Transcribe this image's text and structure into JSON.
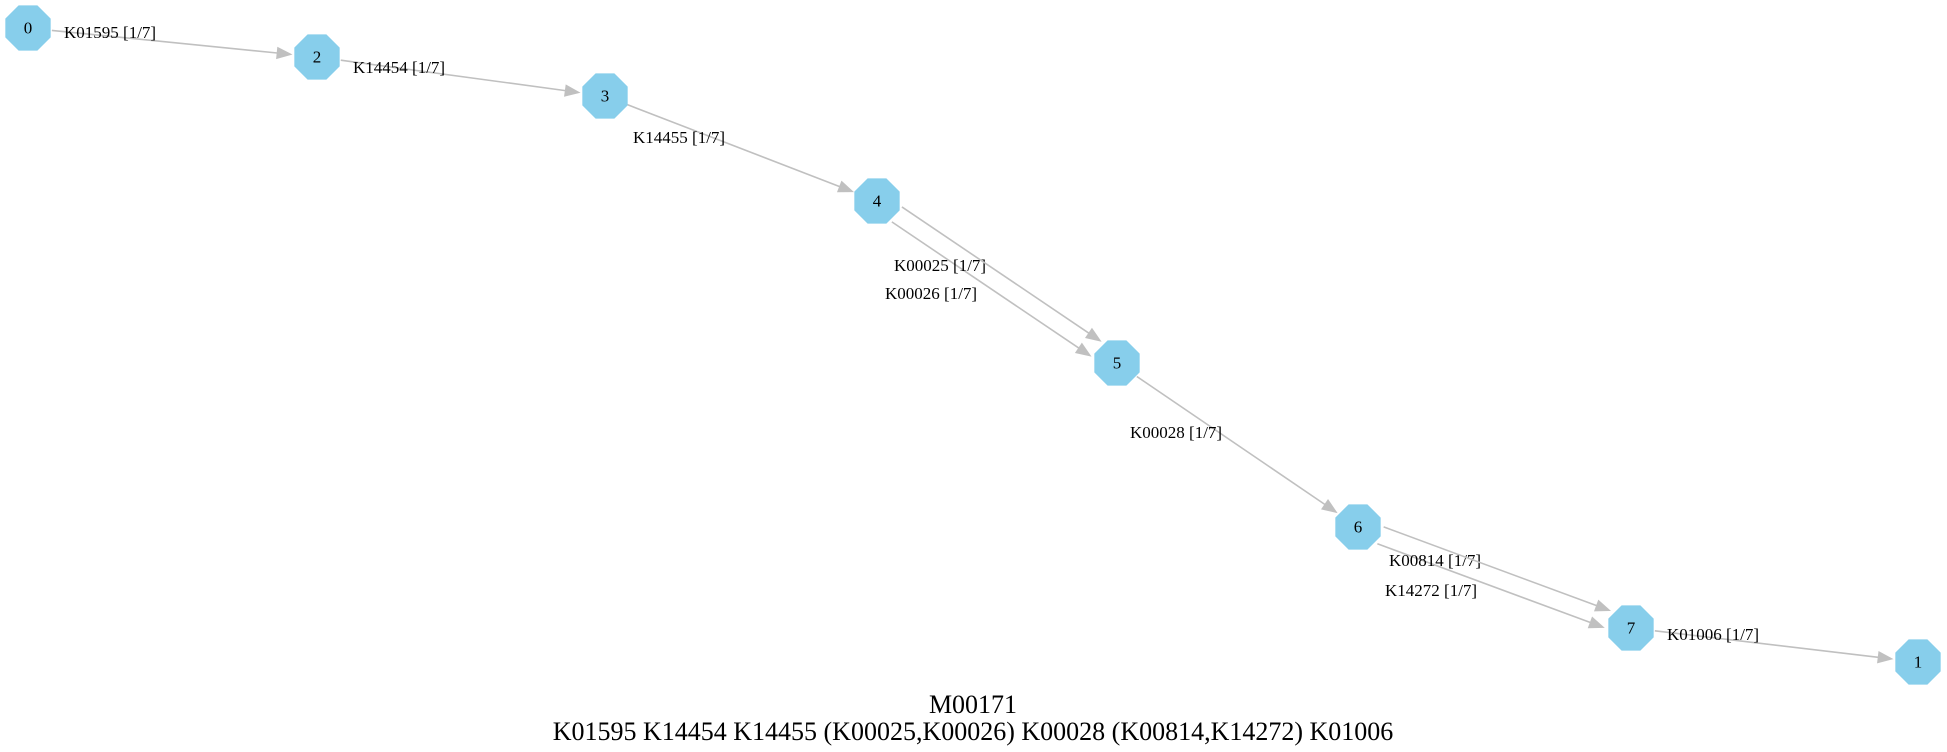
{
  "module": {
    "id": "M00171",
    "definition": "K01595 K14454 K14455 (K00025,K00026) K00028 (K00814,K14272) K01006"
  },
  "nodes": [
    {
      "id": "0",
      "label": "0"
    },
    {
      "id": "2",
      "label": "2"
    },
    {
      "id": "3",
      "label": "3"
    },
    {
      "id": "4",
      "label": "4"
    },
    {
      "id": "5",
      "label": "5"
    },
    {
      "id": "6",
      "label": "6"
    },
    {
      "id": "7",
      "label": "7"
    },
    {
      "id": "1",
      "label": "1"
    }
  ],
  "edges": [
    {
      "from": "0",
      "to": "2",
      "label": "K01595 [1/7]"
    },
    {
      "from": "2",
      "to": "3",
      "label": "K14454 [1/7]"
    },
    {
      "from": "3",
      "to": "4",
      "label": "K14455 [1/7]"
    },
    {
      "from": "4",
      "to": "5",
      "label": "K00025 [1/7]"
    },
    {
      "from": "4",
      "to": "5",
      "label": "K00026 [1/7]"
    },
    {
      "from": "5",
      "to": "6",
      "label": "K00028 [1/7]"
    },
    {
      "from": "6",
      "to": "7",
      "label": "K00814 [1/7]"
    },
    {
      "from": "6",
      "to": "7",
      "label": "K14272 [1/7]"
    },
    {
      "from": "7",
      "to": "1",
      "label": "K01006 [1/7]"
    }
  ],
  "colors": {
    "node_fill": "#87ceeb",
    "edge": "#c0c0c0",
    "text": "#000000"
  }
}
